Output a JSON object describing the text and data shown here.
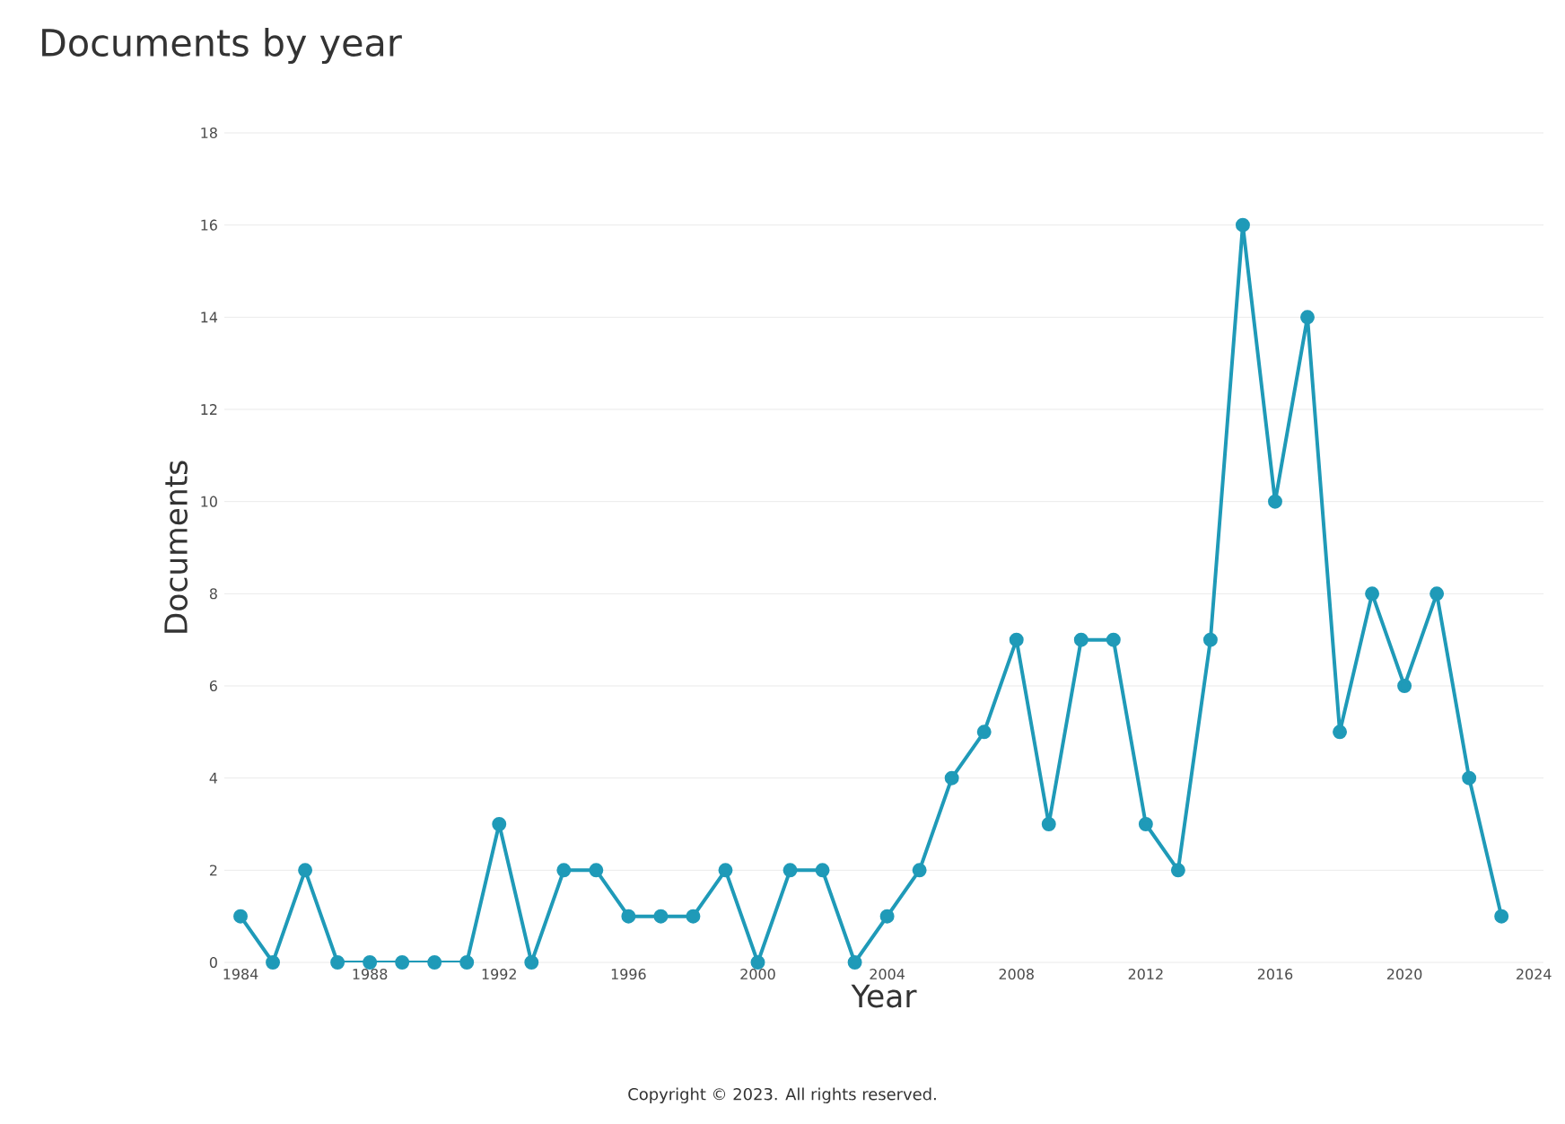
{
  "chart_data": {
    "type": "line",
    "title": "Documents by year",
    "xlabel": "Year",
    "ylabel": "Documents",
    "annotations": [
      "Copyright © 2023. All rights reserved."
    ],
    "x": [
      1984,
      1985,
      1986,
      1987,
      1988,
      1989,
      1990,
      1991,
      1992,
      1993,
      1994,
      1995,
      1996,
      1997,
      1998,
      1999,
      2000,
      2001,
      2002,
      2003,
      2004,
      2005,
      2006,
      2007,
      2008,
      2009,
      2010,
      2011,
      2012,
      2013,
      2014,
      2015,
      2016,
      2017,
      2018,
      2019,
      2020,
      2021,
      2022,
      2023
    ],
    "values": [
      1,
      0,
      2,
      0,
      0,
      0,
      0,
      0,
      3,
      0,
      2,
      2,
      1,
      1,
      1,
      2,
      0,
      2,
      2,
      0,
      1,
      2,
      4,
      5,
      7,
      3,
      7,
      7,
      3,
      2,
      7,
      16,
      10,
      14,
      5,
      8,
      6,
      8,
      4,
      1
    ],
    "color": "#1f9ab8",
    "marker": "circle",
    "grid": "y",
    "xlim": [
      1983.5,
      2024.3
    ],
    "xticks": [
      1984,
      1988,
      1992,
      1996,
      2000,
      2004,
      2008,
      2012,
      2016,
      2020,
      2024
    ],
    "ylim": [
      0,
      18
    ],
    "yticks": [
      0,
      2,
      4,
      6,
      8,
      10,
      12,
      14,
      16,
      18
    ]
  }
}
